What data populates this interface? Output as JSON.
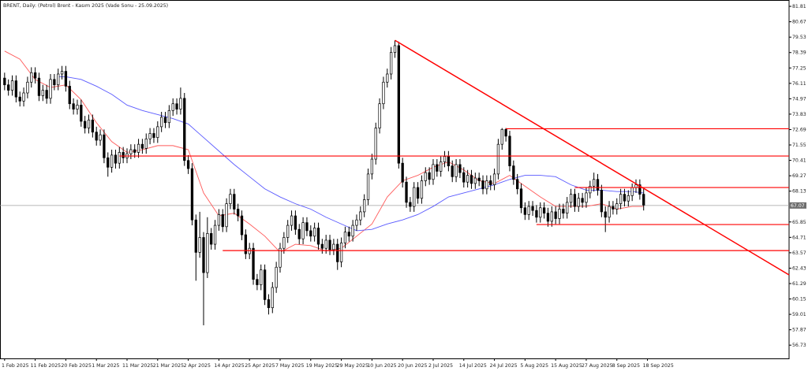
{
  "chart_data": {
    "type": "candlestick",
    "title": "BRENT, Daily:  (Petrol) Brent - Kasım 2025 (Vade Sonu - 25.09.2025)",
    "open": [
      76.5,
      76.0,
      75.6,
      76.3,
      75.1,
      74.8,
      75.4,
      76.2,
      76.9,
      76.5,
      75.2,
      75.6,
      75.0,
      76.4,
      76.0,
      76.8,
      77.0,
      75.9,
      74.6,
      74.2,
      74.5,
      73.3,
      72.8,
      73.4,
      72.5,
      71.9,
      72.3,
      70.6,
      69.9,
      70.8,
      70.2,
      71.0,
      70.6,
      70.9,
      71.2,
      71.0,
      71.6,
      71.3,
      72.0,
      72.4,
      72.1,
      72.9,
      73.6,
      73.2,
      74.1,
      74.6,
      74.2,
      75.0,
      70.4,
      69.8,
      66.0,
      63.6,
      64.7,
      62.1,
      65.0,
      64.2,
      65.6,
      66.4,
      65.5,
      67.2,
      67.9,
      66.8,
      66.3,
      64.9,
      63.5,
      63.9,
      61.6,
      61.2,
      62.3,
      60.1,
      59.5,
      61.0,
      62.5,
      63.9,
      64.7,
      65.6,
      66.3,
      65.3,
      64.6,
      65.8,
      65.2,
      64.8,
      65.4,
      64.2,
      63.9,
      64.5,
      63.8,
      64.2,
      62.9,
      64.3,
      65.1,
      64.8,
      65.6,
      66.0,
      66.6,
      67.5,
      69.4,
      70.5,
      72.8,
      74.6,
      76.2,
      76.8,
      78.4,
      78.9,
      70.2,
      68.8,
      67.3,
      67.0,
      68.4,
      67.6,
      68.9,
      69.5,
      69.0,
      70.1,
      69.6,
      70.3,
      70.7,
      70.0,
      69.2,
      70.1,
      69.5,
      68.8,
      69.3,
      68.7,
      69.1,
      68.9,
      68.3,
      68.9,
      68.6,
      69.4,
      71.6,
      72.7,
      72.2,
      70.0,
      69.0,
      68.3,
      66.9,
      66.4,
      67.0,
      66.7,
      66.2,
      66.9,
      66.5,
      65.9,
      66.6,
      66.1,
      66.8,
      66.5,
      67.3,
      67.9,
      67.0,
      67.6,
      67.3,
      68.0,
      68.5,
      69.0,
      68.2,
      66.6,
      66.2,
      67.0,
      66.8,
      67.2,
      67.9,
      67.4,
      67.8,
      68.4,
      68.6,
      67.9
    ],
    "high": [
      76.9,
      76.4,
      76.7,
      76.7,
      75.5,
      75.8,
      76.6,
      77.3,
      77.3,
      76.9,
      76.0,
      76.0,
      76.8,
      76.8,
      77.2,
      77.4,
      77.4,
      76.3,
      75.0,
      74.9,
      74.9,
      73.7,
      73.8,
      73.8,
      72.9,
      72.7,
      72.7,
      71.0,
      71.2,
      71.2,
      71.4,
      71.4,
      71.3,
      71.6,
      71.6,
      72.0,
      72.0,
      72.4,
      72.8,
      72.8,
      73.3,
      74.0,
      74.0,
      74.5,
      75.0,
      75.0,
      75.8,
      75.4,
      70.8,
      70.2,
      66.4,
      66.6,
      65.1,
      66.2,
      65.4,
      66.0,
      66.8,
      66.8,
      67.6,
      68.3,
      68.3,
      67.2,
      66.7,
      65.3,
      64.3,
      64.3,
      62.0,
      62.7,
      62.7,
      60.5,
      61.4,
      62.9,
      64.3,
      65.1,
      66.0,
      66.7,
      66.7,
      65.7,
      66.2,
      66.2,
      65.6,
      65.8,
      65.8,
      64.6,
      64.9,
      64.9,
      64.6,
      64.6,
      64.7,
      65.5,
      65.5,
      66.0,
      66.4,
      67.0,
      67.9,
      69.8,
      70.9,
      73.2,
      75.0,
      76.6,
      77.2,
      78.8,
      79.3,
      79.2,
      70.6,
      69.2,
      67.7,
      68.8,
      68.8,
      69.3,
      69.9,
      69.9,
      70.5,
      70.5,
      70.7,
      71.1,
      71.1,
      70.4,
      70.5,
      70.5,
      69.9,
      69.7,
      69.7,
      69.5,
      69.5,
      69.3,
      69.3,
      69.3,
      69.8,
      72.0,
      72.8,
      72.8,
      72.6,
      70.4,
      69.4,
      68.7,
      67.3,
      67.4,
      67.4,
      67.1,
      67.3,
      67.3,
      66.9,
      67.0,
      67.0,
      67.2,
      67.2,
      67.7,
      68.3,
      68.3,
      68.0,
      68.0,
      68.4,
      68.9,
      69.5,
      69.4,
      68.6,
      67.0,
      67.4,
      67.4,
      67.6,
      68.3,
      68.3,
      68.2,
      68.7,
      69.0,
      69.0,
      68.3
    ],
    "low": [
      75.6,
      75.2,
      75.2,
      74.7,
      74.4,
      74.4,
      75.0,
      75.8,
      76.1,
      74.8,
      74.8,
      74.6,
      74.6,
      75.6,
      75.6,
      76.4,
      75.5,
      74.2,
      73.8,
      73.8,
      72.9,
      72.4,
      72.4,
      72.1,
      71.5,
      71.5,
      70.2,
      69.2,
      69.5,
      69.8,
      69.8,
      70.2,
      70.2,
      70.5,
      70.6,
      70.6,
      70.9,
      70.9,
      71.6,
      71.7,
      71.7,
      72.5,
      72.8,
      72.8,
      73.7,
      73.8,
      73.8,
      70.0,
      69.4,
      65.6,
      61.5,
      63.2,
      58.2,
      61.7,
      63.8,
      63.8,
      65.2,
      65.1,
      65.1,
      66.8,
      66.4,
      65.9,
      64.5,
      63.1,
      63.1,
      61.2,
      60.8,
      60.8,
      59.7,
      59.0,
      59.1,
      60.6,
      62.1,
      63.5,
      64.3,
      65.2,
      64.9,
      64.2,
      64.2,
      64.8,
      64.4,
      64.4,
      63.8,
      63.5,
      63.5,
      63.4,
      63.4,
      62.3,
      62.5,
      63.9,
      64.4,
      64.4,
      65.2,
      65.6,
      66.2,
      67.1,
      69.0,
      70.1,
      72.4,
      74.2,
      75.8,
      76.4,
      78.0,
      69.8,
      68.4,
      66.9,
      66.6,
      66.6,
      67.2,
      67.2,
      68.5,
      68.6,
      68.6,
      69.2,
      69.2,
      69.9,
      69.6,
      68.8,
      68.8,
      69.1,
      68.4,
      68.4,
      68.3,
      68.3,
      68.5,
      67.9,
      67.9,
      68.2,
      68.2,
      69.0,
      71.2,
      71.8,
      69.6,
      68.6,
      67.9,
      66.5,
      66.0,
      66.0,
      66.3,
      65.8,
      65.8,
      66.1,
      65.5,
      65.5,
      65.7,
      65.7,
      66.1,
      66.1,
      66.9,
      66.6,
      66.6,
      66.9,
      66.9,
      67.6,
      68.1,
      67.8,
      66.2,
      65.1,
      65.8,
      66.4,
      66.4,
      66.8,
      67.0,
      67.0,
      67.4,
      68.0,
      67.5,
      66.7
    ],
    "close": [
      76.0,
      75.6,
      76.3,
      75.1,
      74.8,
      75.4,
      76.2,
      76.9,
      76.5,
      75.2,
      75.6,
      75.0,
      76.4,
      76.0,
      76.8,
      77.0,
      75.9,
      74.6,
      74.2,
      74.5,
      73.3,
      72.8,
      73.4,
      72.5,
      71.9,
      72.3,
      70.6,
      69.9,
      70.8,
      70.2,
      71.0,
      70.6,
      70.9,
      71.2,
      71.0,
      71.6,
      71.3,
      72.0,
      72.4,
      72.1,
      72.9,
      73.6,
      73.2,
      74.1,
      74.6,
      74.2,
      75.0,
      70.4,
      69.8,
      66.0,
      63.6,
      64.7,
      62.1,
      65.0,
      64.2,
      65.6,
      66.4,
      65.5,
      67.2,
      67.9,
      66.8,
      66.3,
      64.9,
      63.5,
      63.9,
      61.6,
      61.2,
      62.3,
      60.1,
      59.5,
      61.0,
      62.5,
      63.9,
      64.7,
      65.6,
      66.3,
      65.3,
      64.6,
      65.8,
      65.2,
      64.8,
      65.4,
      64.2,
      63.9,
      64.5,
      63.8,
      64.2,
      62.9,
      64.3,
      65.1,
      64.8,
      65.6,
      66.0,
      66.6,
      67.5,
      69.4,
      70.5,
      72.8,
      74.6,
      76.2,
      76.8,
      78.4,
      78.9,
      70.2,
      68.8,
      67.3,
      67.0,
      68.4,
      67.6,
      68.9,
      69.5,
      69.0,
      70.1,
      69.6,
      70.3,
      70.7,
      70.0,
      69.2,
      70.1,
      69.5,
      68.8,
      69.3,
      68.7,
      69.1,
      68.9,
      68.3,
      68.9,
      68.6,
      69.4,
      71.6,
      72.7,
      72.2,
      70.0,
      69.0,
      68.3,
      66.9,
      66.4,
      67.0,
      66.7,
      66.2,
      66.9,
      66.5,
      65.9,
      66.6,
      66.1,
      66.8,
      66.5,
      67.3,
      67.9,
      67.0,
      67.6,
      67.3,
      68.0,
      68.5,
      69.0,
      68.2,
      66.6,
      66.2,
      67.0,
      66.8,
      67.2,
      67.9,
      67.4,
      67.8,
      68.4,
      68.6,
      67.9,
      67.1
    ],
    "up_color": "#ffffff",
    "down_color": "#000000",
    "wick_color": "#000000",
    "overlays": [
      {
        "color": "#ff5a5a",
        "x": [
          0,
          4,
          8,
          12,
          16,
          20,
          24,
          28,
          32,
          36,
          40,
          44,
          48,
          52,
          56,
          60,
          64,
          68,
          72,
          76,
          80,
          84,
          88,
          92,
          96,
          100,
          104,
          108,
          112,
          116,
          120,
          124,
          128,
          132,
          136,
          140,
          144,
          148,
          152,
          156,
          160,
          164,
          167
        ],
        "values": [
          78.5,
          77.9,
          76.4,
          75.8,
          76.0,
          74.9,
          73.2,
          71.8,
          71.0,
          71.2,
          71.5,
          71.5,
          71.2,
          68.0,
          66.3,
          66.5,
          65.7,
          64.8,
          63.6,
          64.2,
          64.1,
          63.7,
          63.9,
          64.8,
          65.7,
          67.7,
          68.9,
          69.3,
          69.9,
          70.3,
          69.7,
          68.9,
          68.7,
          69.3,
          68.5,
          67.7,
          67.0,
          67.0,
          67.0,
          67.2,
          66.8,
          67.0,
          67.0
        ]
      },
      {
        "color": "#5a5aff",
        "x": [
          14,
          16,
          20,
          24,
          28,
          32,
          36,
          40,
          44,
          48,
          52,
          56,
          60,
          64,
          68,
          72,
          76,
          80,
          84,
          88,
          92,
          96,
          100,
          104,
          108,
          112,
          116,
          120,
          124,
          128,
          132,
          136,
          140,
          144,
          148,
          152,
          156,
          160,
          164,
          167
        ],
        "values": [
          76.6,
          76.6,
          76.4,
          75.9,
          75.3,
          74.5,
          74.1,
          73.8,
          73.5,
          73.1,
          72.1,
          71.1,
          70.1,
          69.2,
          68.3,
          67.7,
          67.2,
          66.8,
          66.2,
          65.7,
          65.2,
          65.3,
          65.7,
          66.0,
          66.4,
          67.0,
          67.7,
          68.0,
          68.3,
          68.6,
          69.0,
          69.3,
          69.3,
          69.2,
          68.6,
          68.2,
          68.2,
          68.1,
          68.1,
          68.0
        ]
      }
    ],
    "levels": [
      {
        "x": 30,
        "y": 70.73
      },
      {
        "x": 131,
        "y": 72.75
      },
      {
        "x": 149,
        "y": 68.4
      },
      {
        "x": 139,
        "y": 65.66
      },
      {
        "x": 57,
        "y": 63.73
      }
    ],
    "level_color": "#ff0000",
    "trendline": {
      "x": [
        102,
        205
      ],
      "y": [
        79.3,
        61.93
      ],
      "color": "#ff0000"
    },
    "last_price": 67.07,
    "last_price_color": "#a0a0a0",
    "xlim": [
      -1.2,
      205
    ],
    "ylim": [
      55.75,
      82.28
    ],
    "yticks": [
      81.81,
      80.67,
      79.53,
      78.39,
      77.25,
      76.11,
      74.97,
      73.83,
      72.69,
      71.55,
      70.41,
      69.27,
      68.13,
      65.85,
      64.71,
      63.57,
      62.43,
      61.29,
      60.15,
      59.01,
      57.87,
      56.73
    ],
    "xticks": [
      {
        "value": 0,
        "label": "1 Feb 2025"
      },
      {
        "value": 8,
        "label": "11 Feb 2025"
      },
      {
        "value": 16,
        "label": "20 Feb 2025"
      },
      {
        "value": 24,
        "label": "1 Mar 2025"
      },
      {
        "value": 32,
        "label": "11 Mar 2025"
      },
      {
        "value": 40,
        "label": "21 Mar 2025"
      },
      {
        "value": 48,
        "label": "2 Apr 2025"
      },
      {
        "value": 56,
        "label": "14 Apr 2025"
      },
      {
        "value": 64,
        "label": "25 Apr 2025"
      },
      {
        "value": 72,
        "label": "7 May 2025"
      },
      {
        "value": 80,
        "label": "19 May 2025"
      },
      {
        "value": 88,
        "label": "29 May 2025"
      },
      {
        "value": 96,
        "label": "10 Jun 2025"
      },
      {
        "value": 104,
        "label": "20 Jun 2025"
      },
      {
        "value": 112,
        "label": "2 Jul 2025"
      },
      {
        "value": 120,
        "label": "14 Jul 2025"
      },
      {
        "value": 128,
        "label": "24 Jul 2025"
      },
      {
        "value": 136,
        "label": "5 Aug 2025"
      },
      {
        "value": 144,
        "label": "15 Aug 2025"
      },
      {
        "value": 152,
        "label": "27 Aug 2025"
      },
      {
        "value": 160,
        "label": "8 Sep 2025"
      },
      {
        "value": 168,
        "label": "18 Sep 2025"
      }
    ]
  }
}
